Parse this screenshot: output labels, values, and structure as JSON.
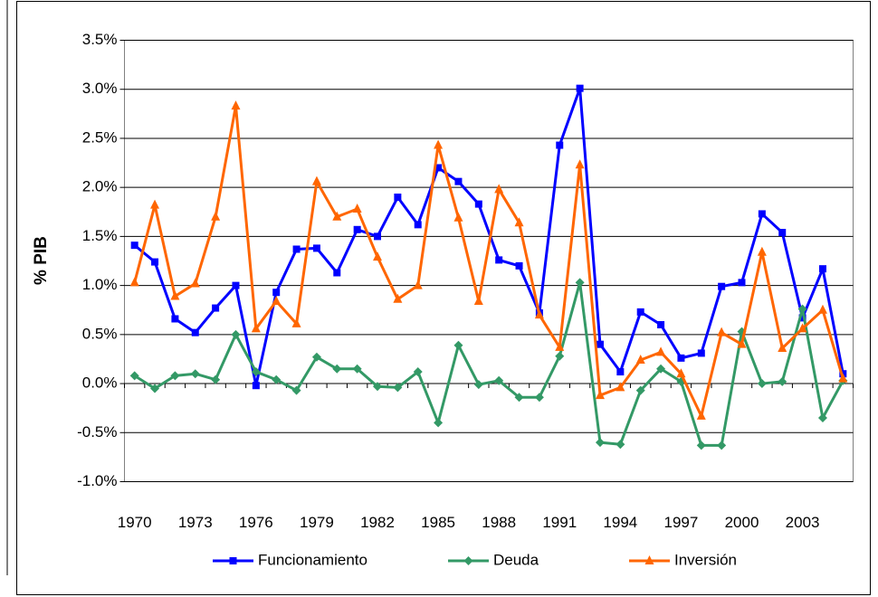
{
  "chart_data": {
    "type": "line",
    "y_label": "% PIB",
    "categories": [
      "1970",
      null,
      null,
      "1973",
      null,
      null,
      "1976",
      null,
      null,
      "1979",
      null,
      null,
      "1982",
      null,
      null,
      "1985",
      null,
      null,
      "1988",
      null,
      null,
      "1991",
      null,
      null,
      "1994",
      null,
      null,
      "1997",
      null,
      null,
      "2000",
      null,
      null,
      "2003",
      null,
      null
    ],
    "series": [
      {
        "name": "Funcionamiento",
        "color": "#0000ff",
        "marker": "square",
        "values": [
          1.41,
          1.24,
          0.66,
          0.52,
          0.77,
          1.0,
          -0.02,
          0.93,
          1.37,
          1.38,
          1.13,
          1.57,
          1.5,
          1.9,
          1.62,
          2.2,
          2.06,
          1.83,
          1.26,
          1.2,
          0.72,
          2.43,
          3.01,
          0.4,
          0.12,
          0.73,
          0.6,
          0.26,
          0.31,
          0.99,
          1.03,
          1.73,
          1.54,
          0.67,
          1.17,
          0.1
        ]
      },
      {
        "name": "Deuda",
        "color": "#339966",
        "marker": "diamond",
        "values": [
          0.08,
          -0.05,
          0.08,
          0.1,
          0.04,
          0.5,
          0.12,
          0.04,
          -0.07,
          0.27,
          0.15,
          0.15,
          -0.03,
          -0.04,
          0.12,
          -0.4,
          0.39,
          -0.01,
          0.03,
          -0.14,
          -0.14,
          0.28,
          1.03,
          -0.6,
          -0.62,
          -0.07,
          0.15,
          0.02,
          -0.63,
          -0.63,
          0.53,
          0.0,
          0.02,
          0.76,
          -0.35,
          0.03
        ]
      },
      {
        "name": "Inversión",
        "color": "#ff6600",
        "marker": "triangle",
        "values": [
          1.03,
          1.82,
          0.89,
          1.02,
          1.7,
          2.83,
          0.56,
          0.84,
          0.61,
          2.06,
          1.7,
          1.78,
          1.29,
          0.86,
          1.0,
          2.43,
          1.69,
          0.84,
          1.98,
          1.64,
          0.7,
          0.37,
          2.23,
          -0.12,
          -0.04,
          0.24,
          0.32,
          0.1,
          -0.33,
          0.52,
          0.4,
          1.34,
          0.36,
          0.56,
          0.75,
          0.05
        ]
      }
    ],
    "ylim": [
      -1.0,
      3.5
    ],
    "yticks": [
      {
        "value": -1.0,
        "label": "-1.0%"
      },
      {
        "value": -0.5,
        "label": "-0.5%"
      },
      {
        "value": 0.0,
        "label": "0.0%"
      },
      {
        "value": 0.5,
        "label": "0.5%"
      },
      {
        "value": 1.0,
        "label": "1.0%"
      },
      {
        "value": 1.5,
        "label": "1.5%"
      },
      {
        "value": 2.0,
        "label": "2.0%"
      },
      {
        "value": 2.5,
        "label": "2.5%"
      },
      {
        "value": 3.0,
        "label": "3.0%"
      },
      {
        "value": 3.5,
        "label": "3.5%"
      }
    ],
    "grid": true,
    "legend": "bottom"
  }
}
